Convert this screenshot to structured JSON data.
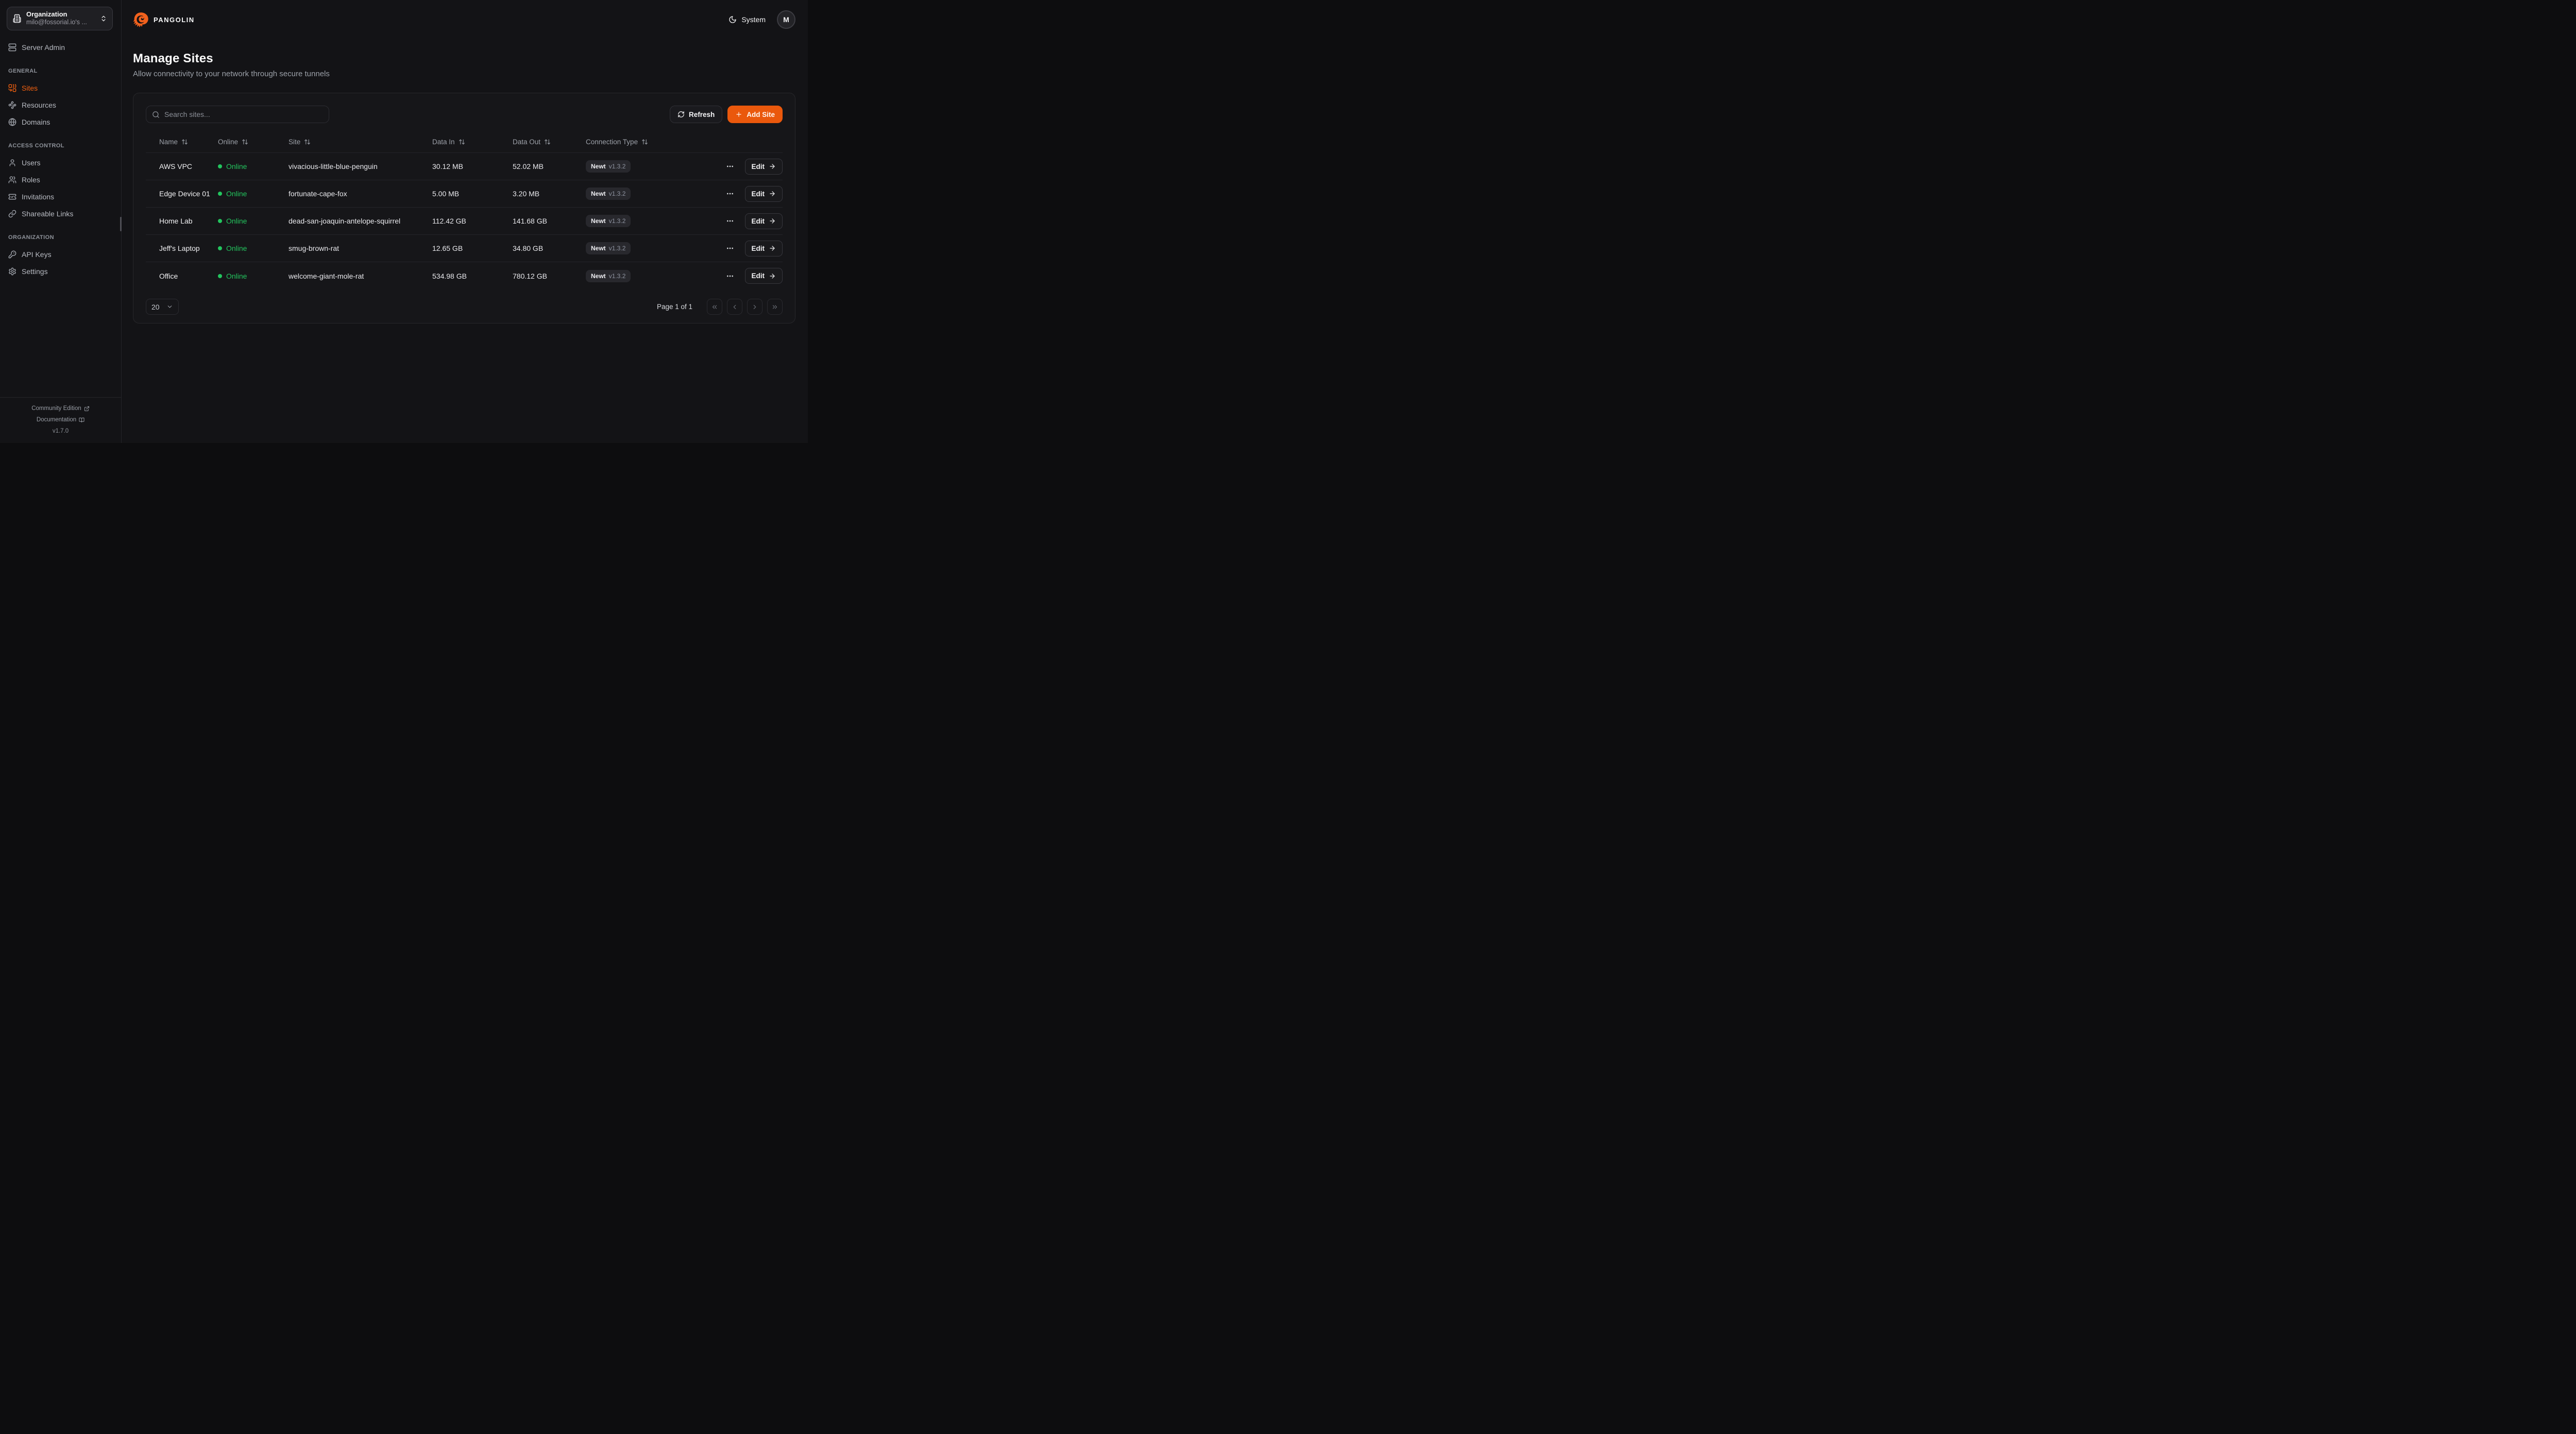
{
  "colors": {
    "accent": "#ea580c",
    "accent_bright": "#f2600f",
    "online_green": "#23c55e"
  },
  "brand": {
    "logo_text": "PANGOLIN"
  },
  "topbar": {
    "theme_label": "System",
    "avatar_initial": "M"
  },
  "sidebar": {
    "org": {
      "title": "Organization",
      "subtitle": "milo@fossorial.io's ..."
    },
    "server_admin_label": "Server Admin",
    "sections": [
      {
        "label": "GENERAL",
        "items": [
          {
            "label": "Sites",
            "icon": "combine",
            "active": true
          },
          {
            "label": "Resources",
            "icon": "waypoints",
            "active": false
          },
          {
            "label": "Domains",
            "icon": "globe",
            "active": false
          }
        ]
      },
      {
        "label": "ACCESS CONTROL",
        "items": [
          {
            "label": "Users",
            "icon": "user",
            "active": false
          },
          {
            "label": "Roles",
            "icon": "users",
            "active": false
          },
          {
            "label": "Invitations",
            "icon": "ticket-check",
            "active": false
          },
          {
            "label": "Shareable Links",
            "icon": "link",
            "active": false
          }
        ]
      },
      {
        "label": "ORGANIZATION",
        "items": [
          {
            "label": "API Keys",
            "icon": "key",
            "active": false
          },
          {
            "label": "Settings",
            "icon": "settings",
            "active": false
          }
        ]
      }
    ],
    "footer": {
      "community_label": "Community Edition",
      "docs_label": "Documentation",
      "version": "v1.7.0"
    }
  },
  "page": {
    "title": "Manage Sites",
    "subtitle": "Allow connectivity to your network through secure tunnels"
  },
  "toolbar": {
    "search_placeholder": "Search sites...",
    "refresh_label": "Refresh",
    "add_site_label": "Add Site"
  },
  "table": {
    "columns": [
      "Name",
      "Online",
      "Site",
      "Data In",
      "Data Out",
      "Connection Type"
    ],
    "edit_label": "Edit",
    "rows": [
      {
        "name": "AWS VPC",
        "status": "Online",
        "site": "vivacious-little-blue-penguin",
        "data_in": "30.12 MB",
        "data_out": "52.02 MB",
        "conn": "Newt",
        "version": "v1.3.2"
      },
      {
        "name": "Edge Device 01",
        "status": "Online",
        "site": "fortunate-cape-fox",
        "data_in": "5.00 MB",
        "data_out": "3.20 MB",
        "conn": "Newt",
        "version": "v1.3.2"
      },
      {
        "name": "Home Lab",
        "status": "Online",
        "site": "dead-san-joaquin-antelope-squirrel",
        "data_in": "112.42 GB",
        "data_out": "141.68 GB",
        "conn": "Newt",
        "version": "v1.3.2"
      },
      {
        "name": "Jeff's Laptop",
        "status": "Online",
        "site": "smug-brown-rat",
        "data_in": "12.65 GB",
        "data_out": "34.80 GB",
        "conn": "Newt",
        "version": "v1.3.2"
      },
      {
        "name": "Office",
        "status": "Online",
        "site": "welcome-giant-mole-rat",
        "data_in": "534.98 GB",
        "data_out": "780.12 GB",
        "conn": "Newt",
        "version": "v1.3.2"
      }
    ],
    "pagination": {
      "page_size": "20",
      "page_info": "Page 1 of 1"
    }
  }
}
